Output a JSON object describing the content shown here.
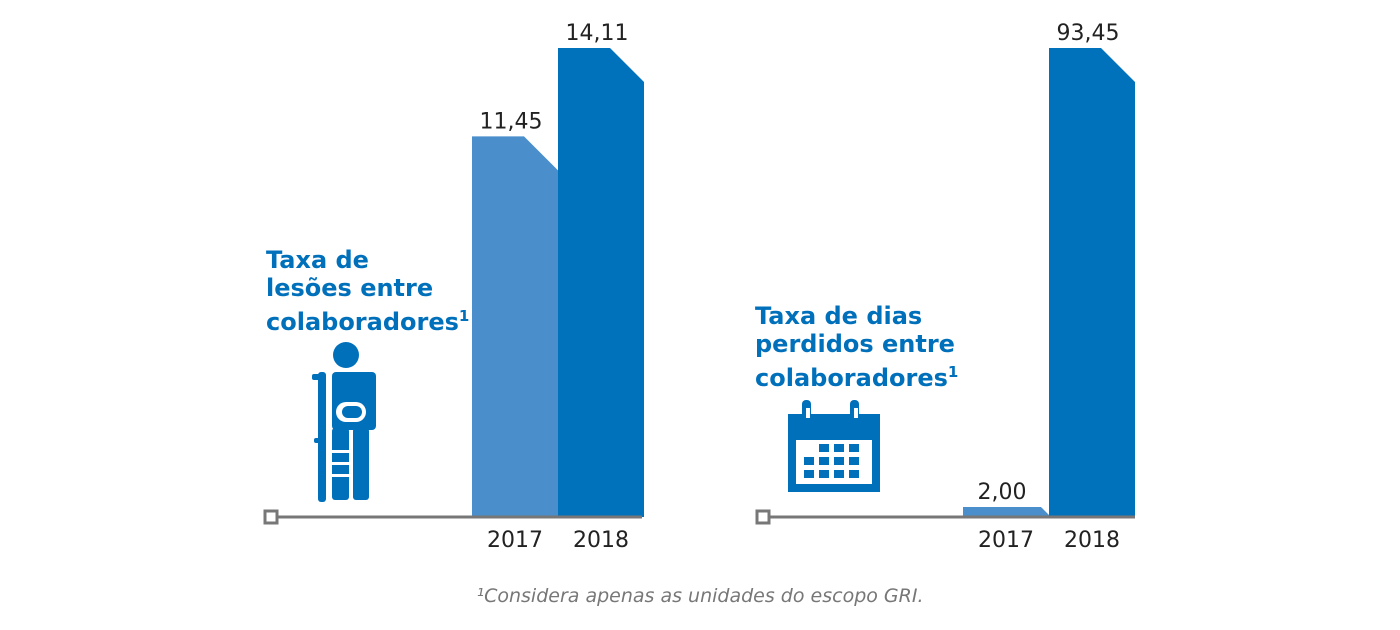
{
  "colors": {
    "bar_2017": "#4a8fcc",
    "bar_2018": "#0071bb",
    "title": "#0070bb",
    "axis": "#777777",
    "icon": "#0070bb"
  },
  "icons": [
    "injured-person-with-crutch-icon",
    "calendar-icon"
  ],
  "chart_data": [
    {
      "type": "bar",
      "title_lines": [
        "Taxa de",
        "lesões entre",
        "colaboradores"
      ],
      "title_sup": "1",
      "categories": [
        "2017",
        "2018"
      ],
      "values": [
        11.45,
        14.11
      ],
      "value_labels": [
        "11,45",
        "14,11"
      ]
    },
    {
      "type": "bar",
      "title_lines": [
        "Taxa de dias",
        "perdidos entre",
        "colaboradores"
      ],
      "title_sup": "1",
      "categories": [
        "2017",
        "2018"
      ],
      "values": [
        2.0,
        93.45
      ],
      "value_labels": [
        "2,00",
        "93,45"
      ]
    }
  ],
  "footnote": "¹Considera apenas as unidades do escopo GRI."
}
